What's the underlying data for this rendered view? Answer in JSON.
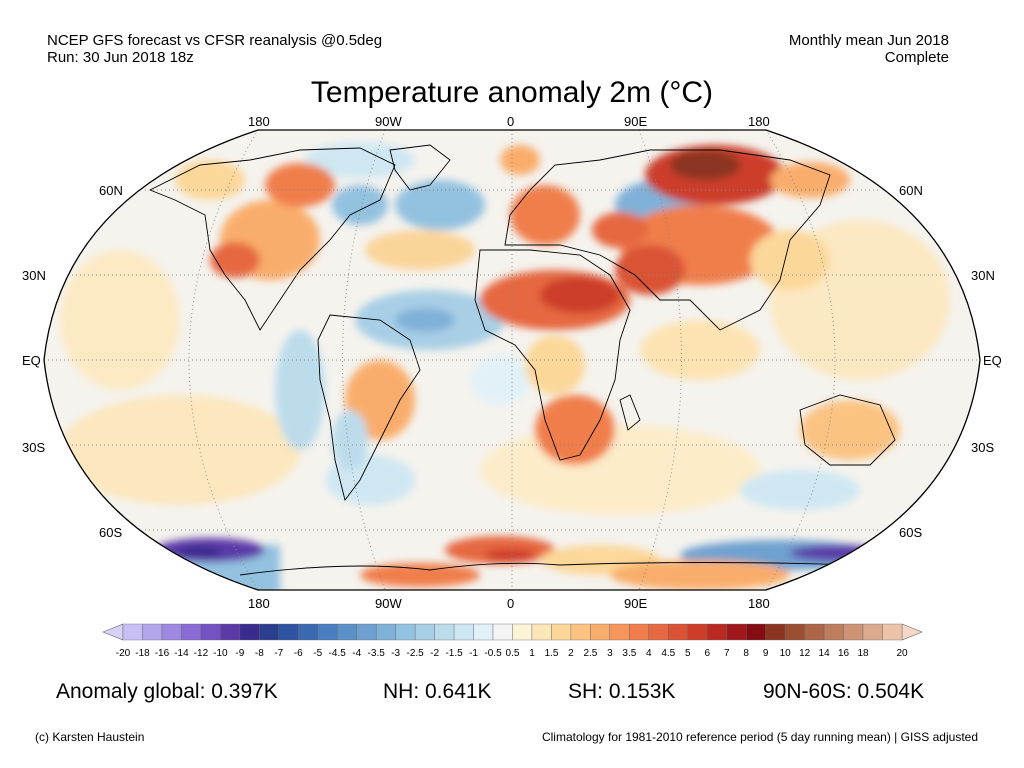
{
  "header": {
    "source_line": "NCEP GFS forecast vs CFSR reanalysis @0.5deg",
    "run_line": "Run: 30 Jun 2018 18z",
    "period_line": "Monthly mean Jun 2018",
    "status_line": "Complete"
  },
  "title": "Temperature anomaly 2m (°C)",
  "map": {
    "projection": "Robinson",
    "lon_labels": [
      "180",
      "90W",
      "0",
      "90E",
      "180"
    ],
    "lat_labels": [
      "60N",
      "30N",
      "EQ",
      "30S",
      "60S"
    ]
  },
  "colorbar": {
    "tick_labels": [
      "-20",
      "-18",
      "-16",
      "-14",
      "-12",
      "-10",
      "-9",
      "-8",
      "-7",
      "-6",
      "-5",
      "-4.5",
      "-4",
      "-3.5",
      "-3",
      "-2.5",
      "-2",
      "-1.5",
      "-1",
      "-0.5",
      "0.5",
      "1",
      "1.5",
      "2",
      "2.5",
      "3",
      "3.5",
      "4",
      "4.5",
      "5",
      "6",
      "7",
      "8",
      "9",
      "10",
      "12",
      "14",
      "16",
      "18",
      "20"
    ],
    "colors": [
      "#c8c0f4",
      "#b4a6ec",
      "#9f88e0",
      "#8b6cd4",
      "#7452c2",
      "#5c3aa8",
      "#3a2c8c",
      "#2c3e8e",
      "#2f55a2",
      "#3a69b2",
      "#4a7ec0",
      "#5c90c8",
      "#6fa1d0",
      "#80b1d8",
      "#93c1e0",
      "#a8cfe6",
      "#bcdcec",
      "#cfe7f2",
      "#e2f1f8",
      "#f4f4f4",
      "#fdf3d8",
      "#fde7b8",
      "#fcd79a",
      "#fbc382",
      "#f9ad6c",
      "#f6965a",
      "#f07e4c",
      "#e66840",
      "#da5334",
      "#cc3e2a",
      "#b92a22",
      "#a0181c",
      "#850c12",
      "#8c3422",
      "#9a4e32",
      "#aa6646",
      "#bc7e5c",
      "#cc9474",
      "#dcab8e",
      "#ecc4ac"
    ],
    "under_color": "#d8d2f8",
    "over_color": "#f6d6c6"
  },
  "stats": {
    "global": "Anomaly global: 0.397K",
    "nh": "NH: 0.641K",
    "sh": "SH: 0.153K",
    "arctic": "90N-60S: 0.504K"
  },
  "footer": {
    "credit": "(c) Karsten Haustein",
    "climatology": "Climatology for 1981-2010 reference period (5 day running mean) | GISS adjusted"
  }
}
